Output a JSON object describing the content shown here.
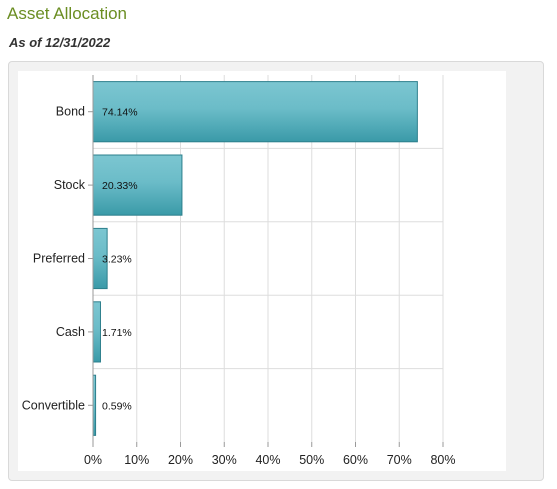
{
  "header": {
    "title": "Asset Allocation",
    "as_of": "As of 12/31/2022"
  },
  "colors": {
    "bar_fill_top": "#7cc6d1",
    "bar_fill_bottom": "#3a9aa8",
    "bar_stroke": "#2c7f8c",
    "grid": "#dddddd",
    "panel_bg": "#f2f2f2"
  },
  "chart_data": {
    "type": "bar",
    "orientation": "horizontal",
    "categories": [
      "Bond",
      "Stock",
      "Preferred",
      "Cash",
      "Convertible"
    ],
    "values": [
      74.14,
      20.33,
      3.23,
      1.71,
      0.59
    ],
    "data_labels": [
      "74.14%",
      "20.33%",
      "3.23%",
      "1.71%",
      "0.59%"
    ],
    "xlim": [
      0,
      80
    ],
    "x_ticks": [
      "0%",
      "10%",
      "20%",
      "30%",
      "40%",
      "50%",
      "60%",
      "70%",
      "80%"
    ],
    "grid": true
  }
}
